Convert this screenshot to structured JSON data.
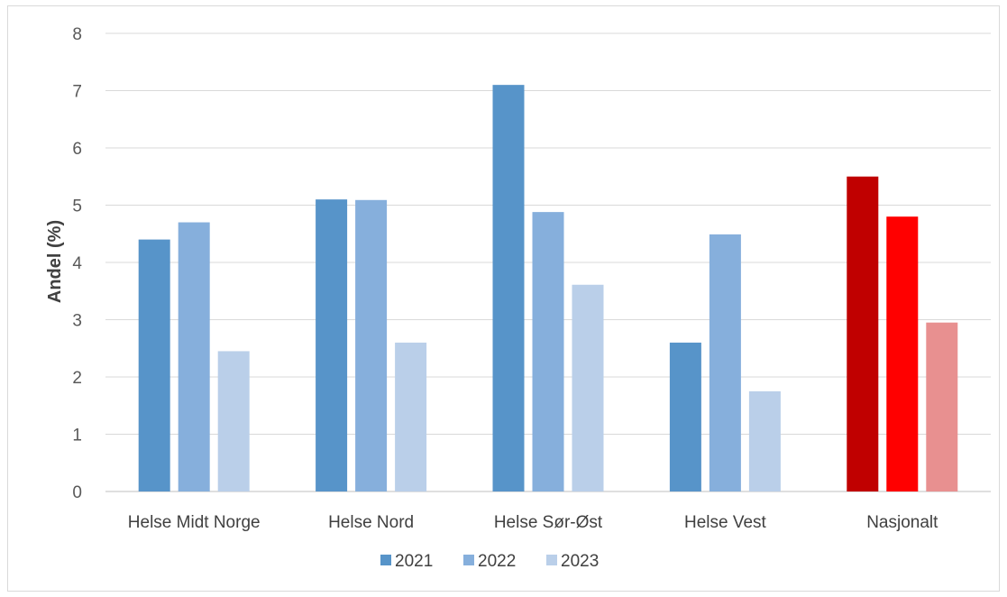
{
  "chart_data": {
    "type": "bar",
    "ylabel": "Andel (%)",
    "xlabel": "",
    "ylim": [
      0,
      8
    ],
    "yticks": [
      0,
      1,
      2,
      3,
      4,
      5,
      6,
      7,
      8
    ],
    "grid": true,
    "legend_position": "bottom",
    "categories": [
      "Helse Midt Norge",
      "Helse Nord",
      "Helse Sør-Øst",
      "Helse Vest",
      "Nasjonalt"
    ],
    "series": [
      {
        "name": "2021",
        "color": "#5794c9",
        "values": [
          4.4,
          5.1,
          7.1,
          2.6,
          5.5
        ]
      },
      {
        "name": "2022",
        "color": "#86afdc",
        "values": [
          4.7,
          5.09,
          4.88,
          4.49,
          4.8
        ]
      },
      {
        "name": "2023",
        "color": "#bacfe9",
        "values": [
          2.45,
          2.6,
          3.61,
          1.75,
          2.95
        ]
      }
    ],
    "highlight_category": "Nasjonalt",
    "highlight_colors": [
      "#c00000",
      "#ff0000",
      "#e89090"
    ]
  }
}
